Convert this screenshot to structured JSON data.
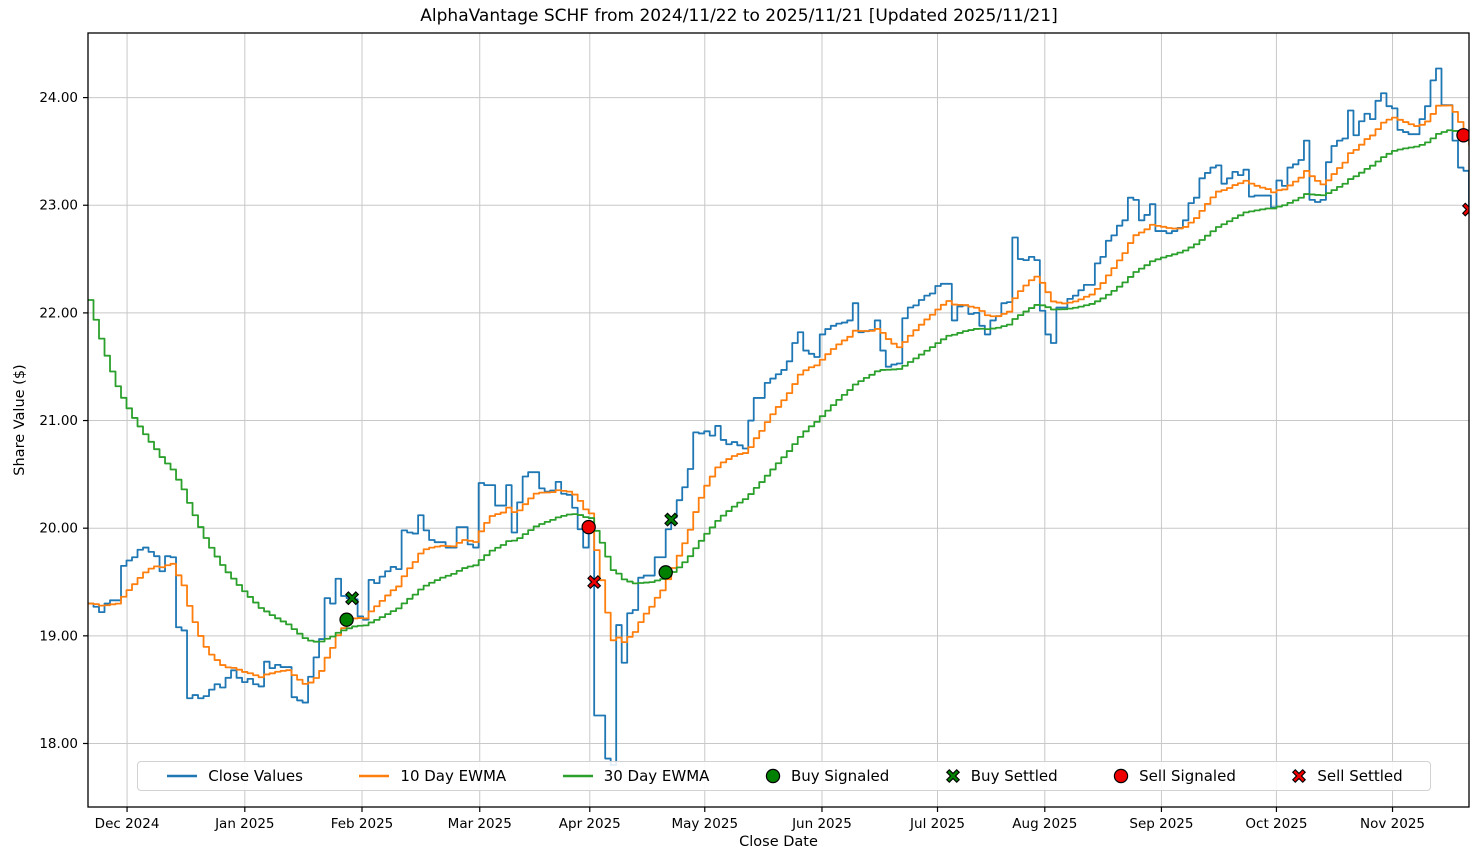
{
  "title": "AlphaVantage SCHF from 2024/11/22 to 2025/11/21 [Updated 2025/11/21]",
  "chart_data": {
    "type": "line",
    "title": "AlphaVantage SCHF from 2024/11/22 to 2025/11/21 [Updated 2025/11/21]",
    "xlabel": "Close Date",
    "ylabel": "Share Value ($)",
    "grid": true,
    "legend_position": "lower center",
    "x_range": [
      0,
      251
    ],
    "ylim": [
      17.41,
      24.6
    ],
    "x_ticks": [
      {
        "day": 7.1,
        "label": "Dec 2024"
      },
      {
        "day": 28.5,
        "label": "Jan 2025"
      },
      {
        "day": 49.8,
        "label": "Feb 2025"
      },
      {
        "day": 71.2,
        "label": "Mar 2025"
      },
      {
        "day": 91.2,
        "label": "Apr 2025"
      },
      {
        "day": 112.1,
        "label": "May 2025"
      },
      {
        "day": 133.4,
        "label": "Jun 2025"
      },
      {
        "day": 154.4,
        "label": "Jul 2025"
      },
      {
        "day": 173.9,
        "label": "Aug 2025"
      },
      {
        "day": 195.1,
        "label": "Sep 2025"
      },
      {
        "day": 216.0,
        "label": "Oct 2025"
      },
      {
        "day": 237.1,
        "label": "Nov 2025"
      }
    ],
    "y_ticks": [
      {
        "value": 18,
        "label": "18.00"
      },
      {
        "value": 19,
        "label": "19.00"
      },
      {
        "value": 20,
        "label": "20.00"
      },
      {
        "value": 21,
        "label": "21.00"
      },
      {
        "value": 22,
        "label": "22.00"
      },
      {
        "value": 23,
        "label": "23.00"
      },
      {
        "value": 24,
        "label": "24.00"
      }
    ],
    "series": [
      {
        "name": "Close Values",
        "color": "#1f77b4",
        "kind": "values",
        "values": [
          19.3,
          19.27,
          19.22,
          19.3,
          19.33,
          19.33,
          19.65,
          19.7,
          19.73,
          19.8,
          19.82,
          19.78,
          19.74,
          19.6,
          19.74,
          19.73,
          19.08,
          19.05,
          18.42,
          18.45,
          18.42,
          18.44,
          18.5,
          18.55,
          18.52,
          18.61,
          18.68,
          18.61,
          18.57,
          18.6,
          18.55,
          18.53,
          18.76,
          18.7,
          18.73,
          18.71,
          18.71,
          18.43,
          18.4,
          18.38,
          18.62,
          18.8,
          18.97,
          19.35,
          19.3,
          19.53,
          19.37,
          19.35,
          19.34,
          19.18,
          19.15,
          19.52,
          19.49,
          19.55,
          19.6,
          19.64,
          19.62,
          19.98,
          19.96,
          19.95,
          20.12,
          19.98,
          19.89,
          19.87,
          19.87,
          19.82,
          19.82,
          20.01,
          20.01,
          19.85,
          19.82,
          20.42,
          20.4,
          20.4,
          20.21,
          20.21,
          20.4,
          19.96,
          20.24,
          20.48,
          20.52,
          20.52,
          20.37,
          20.34,
          20.35,
          20.43,
          20.32,
          20.31,
          20.19,
          19.99,
          19.82,
          19.97,
          18.26,
          18.26,
          17.86,
          17.8,
          19.1,
          18.75,
          19.21,
          19.24,
          19.54,
          19.56,
          19.56,
          19.73,
          19.73,
          19.99,
          20.1,
          20.26,
          20.38,
          20.55,
          20.89,
          20.88,
          20.9,
          20.86,
          20.95,
          20.82,
          20.78,
          20.8,
          20.77,
          20.74,
          21.0,
          21.21,
          21.21,
          21.35,
          21.39,
          21.43,
          21.47,
          21.55,
          21.72,
          21.82,
          21.65,
          21.62,
          21.59,
          21.8,
          21.85,
          21.88,
          21.9,
          21.91,
          21.93,
          22.09,
          21.82,
          21.83,
          21.84,
          21.93,
          21.65,
          21.5,
          21.52,
          21.53,
          21.95,
          22.05,
          22.07,
          22.12,
          22.16,
          22.18,
          22.25,
          22.27,
          22.27,
          21.93,
          22.06,
          22.07,
          21.99,
          22.0,
          21.88,
          21.8,
          21.93,
          21.97,
          22.09,
          22.1,
          22.7,
          22.5,
          22.49,
          22.52,
          22.49,
          22.02,
          21.8,
          21.72,
          22.05,
          22.05,
          22.13,
          22.16,
          22.21,
          22.26,
          22.26,
          22.46,
          22.52,
          22.67,
          22.72,
          22.81,
          22.86,
          23.07,
          23.05,
          22.86,
          22.91,
          23.01,
          22.76,
          22.76,
          22.74,
          22.76,
          22.79,
          22.86,
          23.02,
          23.07,
          23.25,
          23.3,
          23.35,
          23.37,
          23.2,
          23.25,
          23.31,
          23.28,
          23.33,
          23.08,
          23.09,
          23.09,
          23.09,
          22.98,
          23.23,
          23.18,
          23.35,
          23.38,
          23.42,
          23.6,
          23.05,
          23.03,
          23.05,
          23.4,
          23.55,
          23.6,
          23.62,
          23.88,
          23.65,
          23.78,
          23.85,
          23.8,
          23.97,
          24.04,
          23.92,
          23.9,
          23.7,
          23.68,
          23.66,
          23.66,
          23.8,
          23.92,
          24.16,
          24.27,
          23.93,
          23.93,
          23.6,
          23.35,
          23.32,
          22.95
        ]
      },
      {
        "name": "10 Day EWMA",
        "color": "#ff7f0e",
        "kind": "ewma",
        "alpha": 0.1818,
        "init": 19.3
      },
      {
        "name": "30 Day EWMA",
        "color": "#2ca02c",
        "kind": "ewma",
        "alpha": 0.0645,
        "init": 22.12
      }
    ],
    "markers": [
      {
        "name": "Buy Signaled",
        "shape": "circle",
        "color": "#008000",
        "points": [
          {
            "day": 47,
            "value": 19.15
          },
          {
            "day": 105,
            "value": 19.59
          }
        ]
      },
      {
        "name": "Buy Settled",
        "shape": "x",
        "color": "#008000",
        "points": [
          {
            "day": 48,
            "value": 19.35
          },
          {
            "day": 106,
            "value": 20.08
          }
        ]
      },
      {
        "name": "Sell Signaled",
        "shape": "circle",
        "color": "#ee0000",
        "points": [
          {
            "day": 91,
            "value": 20.01
          },
          {
            "day": 250,
            "value": 23.65
          }
        ]
      },
      {
        "name": "Sell Settled",
        "shape": "x",
        "color": "#ee0000",
        "points": [
          {
            "day": 92,
            "value": 19.5
          },
          {
            "day": 251,
            "value": 22.96
          }
        ]
      }
    ],
    "style": {
      "grid_color": "#c8c8c8",
      "spine_color": "#000000",
      "line_width": 1.8,
      "draw_style": "steps-post"
    }
  }
}
